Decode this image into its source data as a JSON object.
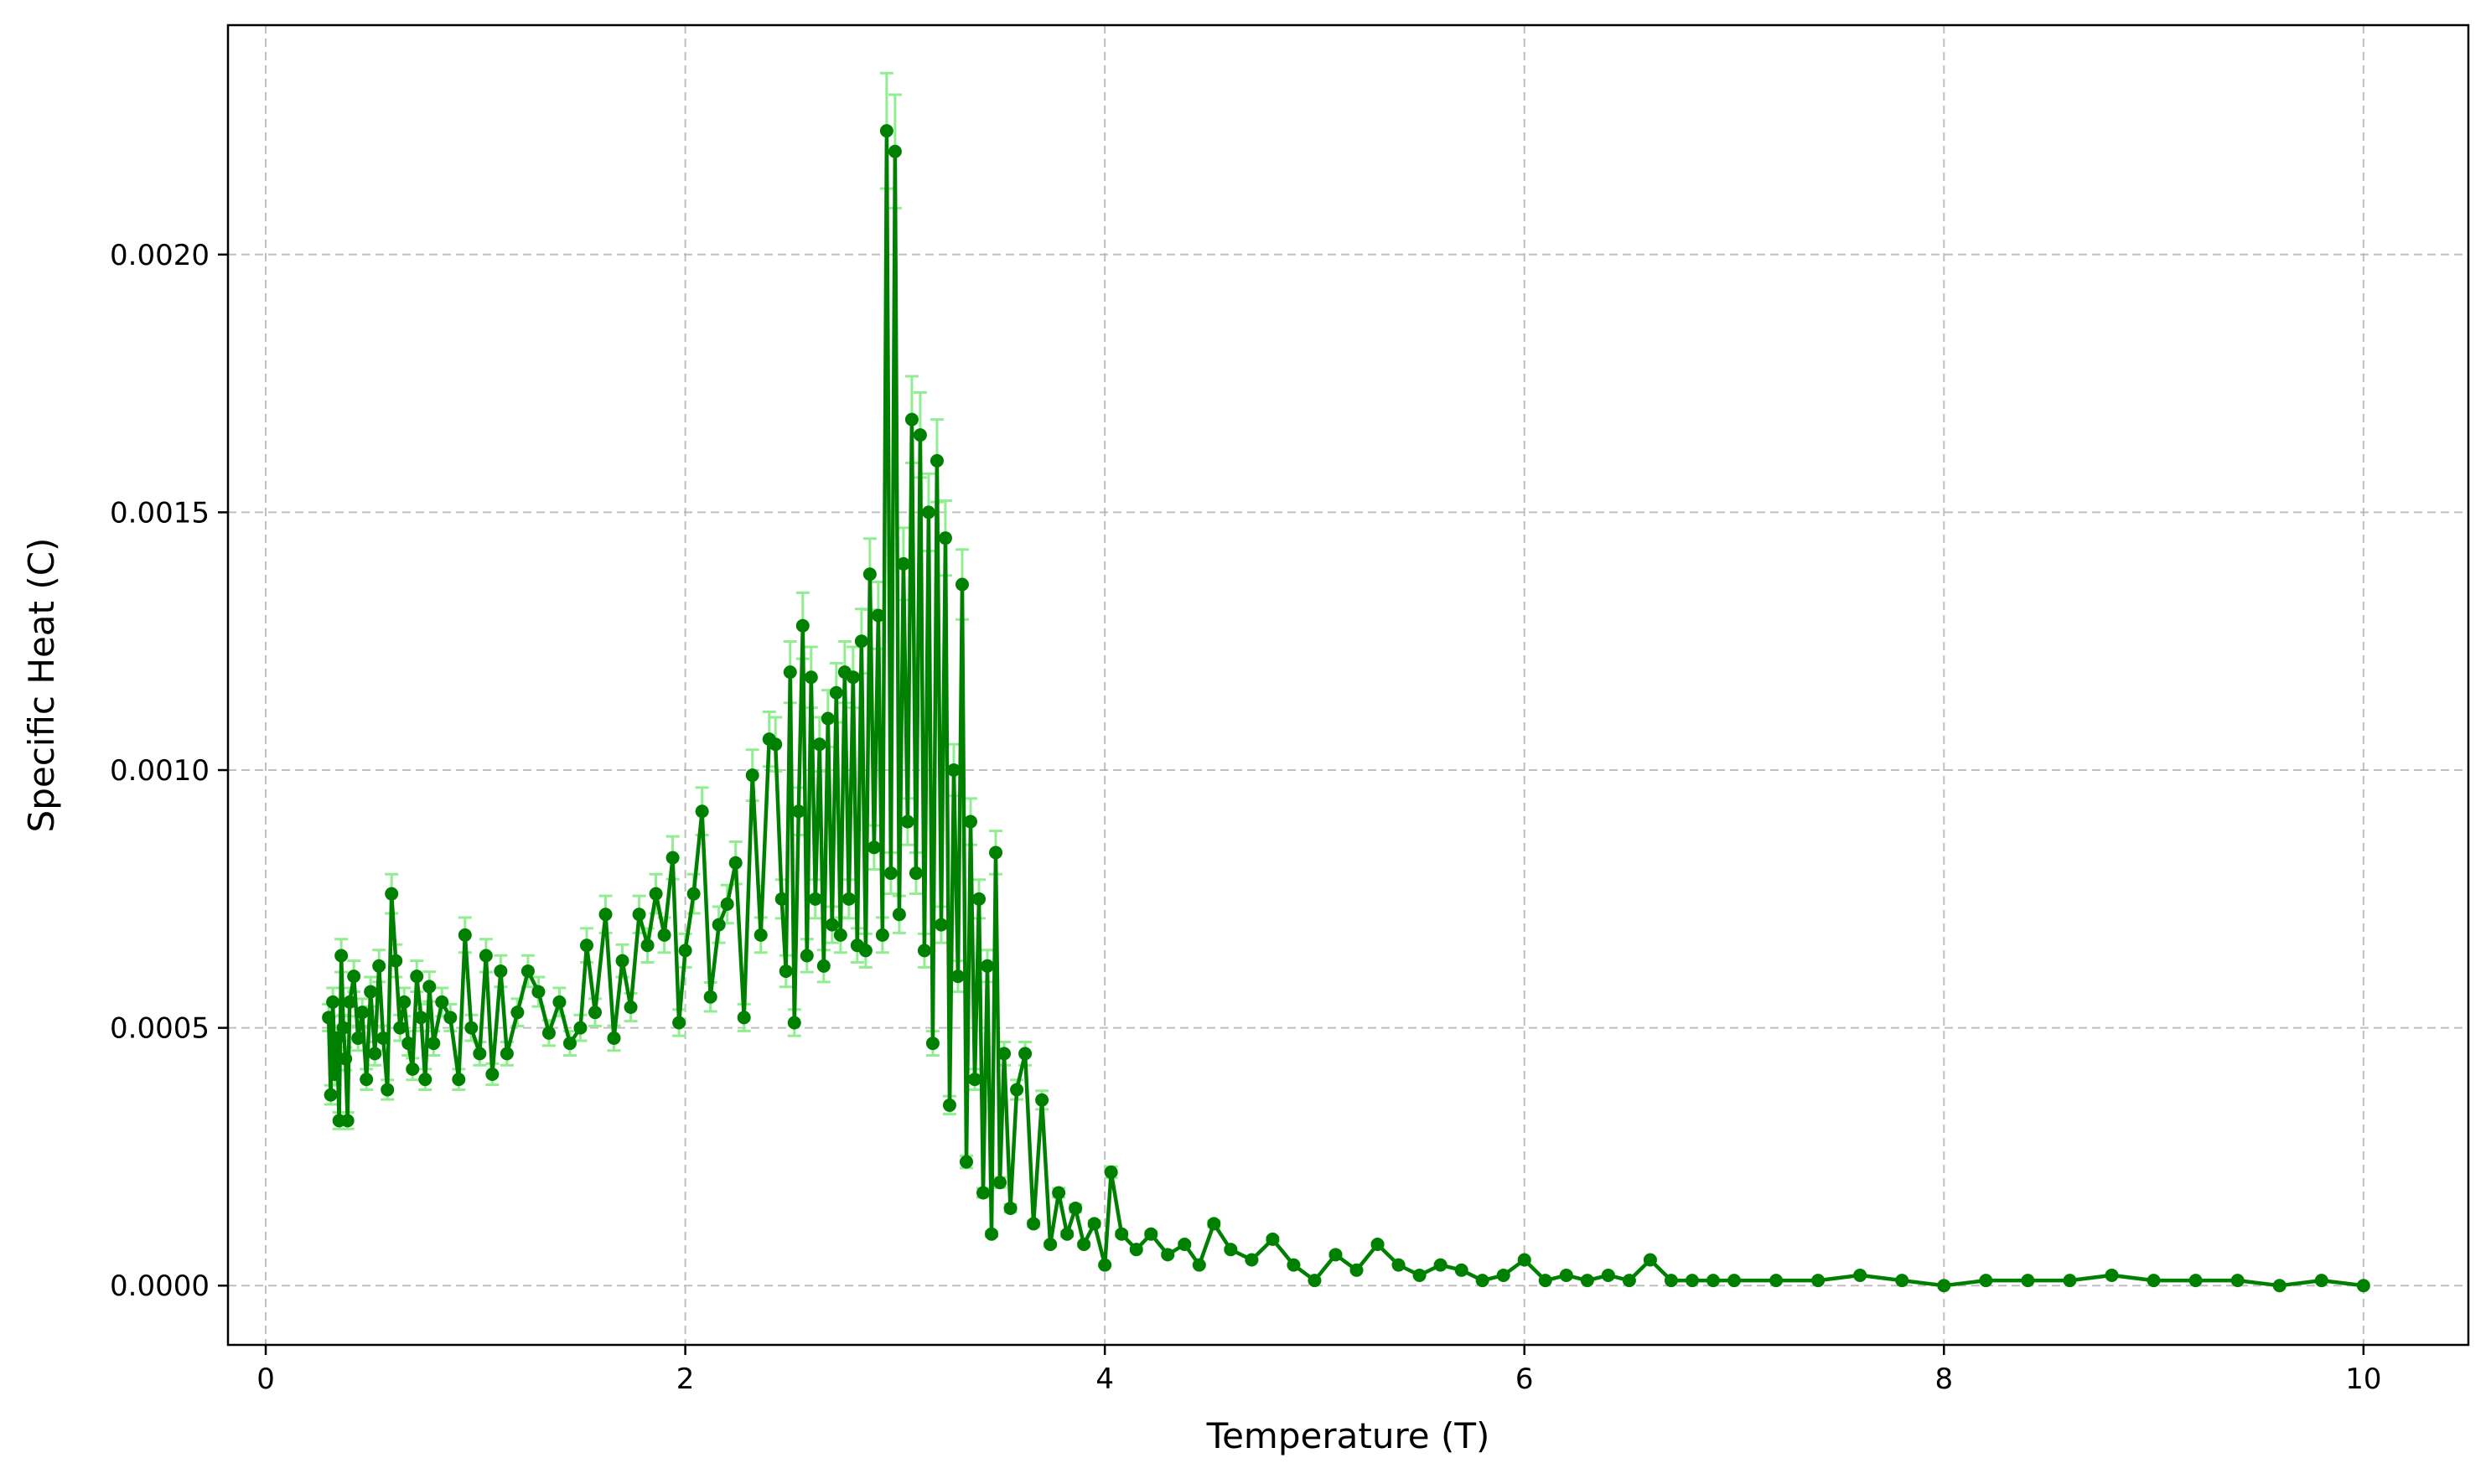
{
  "chart_data": {
    "type": "line",
    "title": "",
    "xlabel": "Temperature (T)",
    "ylabel": "Specific Heat (C)",
    "xlim": [
      -0.18,
      10.5
    ],
    "ylim": [
      -0.000115,
      0.002445
    ],
    "x_ticks": [
      0,
      2,
      4,
      6,
      8,
      10
    ],
    "x_tick_labels": [
      "0",
      "2",
      "4",
      "6",
      "8",
      "10"
    ],
    "y_ticks": [
      0.0,
      0.0005,
      0.001,
      0.0015,
      0.002
    ],
    "y_tick_labels": [
      "0.0000",
      "0.0005",
      "0.0010",
      "0.0015",
      "0.0020"
    ],
    "grid": true,
    "legend": "none",
    "colors": {
      "line": "#008000",
      "error_bars": "#90ee90",
      "grid": "#b0b0b0"
    },
    "series": [
      {
        "marker": "circle",
        "error_fraction": 0.05,
        "points": [
          [
            0.3,
            0.00052
          ],
          [
            0.31,
            0.00037
          ],
          [
            0.32,
            0.00055
          ],
          [
            0.33,
            0.00041
          ],
          [
            0.34,
            0.00048
          ],
          [
            0.35,
            0.00032
          ],
          [
            0.36,
            0.00064
          ],
          [
            0.37,
            0.0005
          ],
          [
            0.38,
            0.00044
          ],
          [
            0.39,
            0.00032
          ],
          [
            0.4,
            0.00055
          ],
          [
            0.42,
            0.0006
          ],
          [
            0.44,
            0.00048
          ],
          [
            0.46,
            0.00053
          ],
          [
            0.48,
            0.0004
          ],
          [
            0.5,
            0.00057
          ],
          [
            0.52,
            0.00045
          ],
          [
            0.54,
            0.00062
          ],
          [
            0.56,
            0.00048
          ],
          [
            0.58,
            0.00038
          ],
          [
            0.6,
            0.00076
          ],
          [
            0.62,
            0.00063
          ],
          [
            0.64,
            0.0005
          ],
          [
            0.66,
            0.00055
          ],
          [
            0.68,
            0.00047
          ],
          [
            0.7,
            0.00042
          ],
          [
            0.72,
            0.0006
          ],
          [
            0.74,
            0.00052
          ],
          [
            0.76,
            0.0004
          ],
          [
            0.78,
            0.00058
          ],
          [
            0.8,
            0.00047
          ],
          [
            0.84,
            0.00055
          ],
          [
            0.88,
            0.00052
          ],
          [
            0.92,
            0.0004
          ],
          [
            0.95,
            0.00068
          ],
          [
            0.98,
            0.0005
          ],
          [
            1.02,
            0.00045
          ],
          [
            1.05,
            0.00064
          ],
          [
            1.08,
            0.00041
          ],
          [
            1.12,
            0.00061
          ],
          [
            1.15,
            0.00045
          ],
          [
            1.2,
            0.00053
          ],
          [
            1.25,
            0.00061
          ],
          [
            1.3,
            0.00057
          ],
          [
            1.35,
            0.00049
          ],
          [
            1.4,
            0.00055
          ],
          [
            1.45,
            0.00047
          ],
          [
            1.5,
            0.0005
          ],
          [
            1.53,
            0.00066
          ],
          [
            1.57,
            0.00053
          ],
          [
            1.62,
            0.00072
          ],
          [
            1.66,
            0.00048
          ],
          [
            1.7,
            0.00063
          ],
          [
            1.74,
            0.00054
          ],
          [
            1.78,
            0.00072
          ],
          [
            1.82,
            0.00066
          ],
          [
            1.86,
            0.00076
          ],
          [
            1.9,
            0.00068
          ],
          [
            1.94,
            0.00083
          ],
          [
            1.97,
            0.00051
          ],
          [
            2.0,
            0.00065
          ],
          [
            2.04,
            0.00076
          ],
          [
            2.08,
            0.00092
          ],
          [
            2.12,
            0.00056
          ],
          [
            2.16,
            0.0007
          ],
          [
            2.2,
            0.00074
          ],
          [
            2.24,
            0.00082
          ],
          [
            2.28,
            0.00052
          ],
          [
            2.32,
            0.00099
          ],
          [
            2.36,
            0.00068
          ],
          [
            2.4,
            0.00106
          ],
          [
            2.43,
            0.00105
          ],
          [
            2.46,
            0.00075
          ],
          [
            2.48,
            0.00061
          ],
          [
            2.5,
            0.00119
          ],
          [
            2.52,
            0.00051
          ],
          [
            2.54,
            0.00092
          ],
          [
            2.56,
            0.00128
          ],
          [
            2.58,
            0.00064
          ],
          [
            2.6,
            0.00118
          ],
          [
            2.62,
            0.00075
          ],
          [
            2.64,
            0.00105
          ],
          [
            2.66,
            0.00062
          ],
          [
            2.68,
            0.0011
          ],
          [
            2.7,
            0.0007
          ],
          [
            2.72,
            0.00115
          ],
          [
            2.74,
            0.00068
          ],
          [
            2.76,
            0.00119
          ],
          [
            2.78,
            0.00075
          ],
          [
            2.8,
            0.00118
          ],
          [
            2.82,
            0.00066
          ],
          [
            2.84,
            0.00125
          ],
          [
            2.86,
            0.00065
          ],
          [
            2.88,
            0.00138
          ],
          [
            2.9,
            0.00085
          ],
          [
            2.92,
            0.0013
          ],
          [
            2.94,
            0.00068
          ],
          [
            2.96,
            0.00224
          ],
          [
            2.98,
            0.0008
          ],
          [
            3.0,
            0.0022
          ],
          [
            3.02,
            0.00072
          ],
          [
            3.04,
            0.0014
          ],
          [
            3.06,
            0.0009
          ],
          [
            3.08,
            0.00168
          ],
          [
            3.1,
            0.0008
          ],
          [
            3.12,
            0.00165
          ],
          [
            3.14,
            0.00065
          ],
          [
            3.16,
            0.0015
          ],
          [
            3.18,
            0.00047
          ],
          [
            3.2,
            0.0016
          ],
          [
            3.22,
            0.0007
          ],
          [
            3.24,
            0.00145
          ],
          [
            3.26,
            0.00035
          ],
          [
            3.28,
            0.001
          ],
          [
            3.3,
            0.0006
          ],
          [
            3.32,
            0.00136
          ],
          [
            3.34,
            0.00024
          ],
          [
            3.36,
            0.0009
          ],
          [
            3.38,
            0.0004
          ],
          [
            3.4,
            0.00075
          ],
          [
            3.42,
            0.00018
          ],
          [
            3.44,
            0.00062
          ],
          [
            3.46,
            0.0001
          ],
          [
            3.48,
            0.00084
          ],
          [
            3.5,
            0.0002
          ],
          [
            3.52,
            0.00045
          ],
          [
            3.55,
            0.00015
          ],
          [
            3.58,
            0.00038
          ],
          [
            3.62,
            0.00045
          ],
          [
            3.66,
            0.00012
          ],
          [
            3.7,
            0.00036
          ],
          [
            3.74,
            8e-05
          ],
          [
            3.78,
            0.00018
          ],
          [
            3.82,
            0.0001
          ],
          [
            3.86,
            0.00015
          ],
          [
            3.9,
            8e-05
          ],
          [
            3.95,
            0.00012
          ],
          [
            4.0,
            4e-05
          ],
          [
            4.03,
            0.00022
          ],
          [
            4.08,
            0.0001
          ],
          [
            4.15,
            7e-05
          ],
          [
            4.22,
            0.0001
          ],
          [
            4.3,
            6e-05
          ],
          [
            4.38,
            8e-05
          ],
          [
            4.45,
            4e-05
          ],
          [
            4.52,
            0.00012
          ],
          [
            4.6,
            7e-05
          ],
          [
            4.7,
            5e-05
          ],
          [
            4.8,
            9e-05
          ],
          [
            4.9,
            4e-05
          ],
          [
            5.0,
            1e-05
          ],
          [
            5.1,
            6e-05
          ],
          [
            5.2,
            3e-05
          ],
          [
            5.3,
            8e-05
          ],
          [
            5.4,
            4e-05
          ],
          [
            5.5,
            2e-05
          ],
          [
            5.6,
            4e-05
          ],
          [
            5.7,
            3e-05
          ],
          [
            5.8,
            1e-05
          ],
          [
            5.9,
            2e-05
          ],
          [
            6.0,
            5e-05
          ],
          [
            6.1,
            1e-05
          ],
          [
            6.2,
            2e-05
          ],
          [
            6.3,
            1e-05
          ],
          [
            6.4,
            2e-05
          ],
          [
            6.5,
            1e-05
          ],
          [
            6.6,
            5e-05
          ],
          [
            6.7,
            1e-05
          ],
          [
            6.8,
            1e-05
          ],
          [
            6.9,
            1e-05
          ],
          [
            7.0,
            1e-05
          ],
          [
            7.2,
            1e-05
          ],
          [
            7.4,
            1e-05
          ],
          [
            7.6,
            2e-05
          ],
          [
            7.8,
            1e-05
          ],
          [
            8.0,
            0.0
          ],
          [
            8.2,
            1e-05
          ],
          [
            8.4,
            1e-05
          ],
          [
            8.6,
            1e-05
          ],
          [
            8.8,
            2e-05
          ],
          [
            9.0,
            1e-05
          ],
          [
            9.2,
            1e-05
          ],
          [
            9.4,
            1e-05
          ],
          [
            9.6,
            0.0
          ],
          [
            9.8,
            1e-05
          ],
          [
            10.0,
            0.0
          ]
        ]
      }
    ]
  }
}
